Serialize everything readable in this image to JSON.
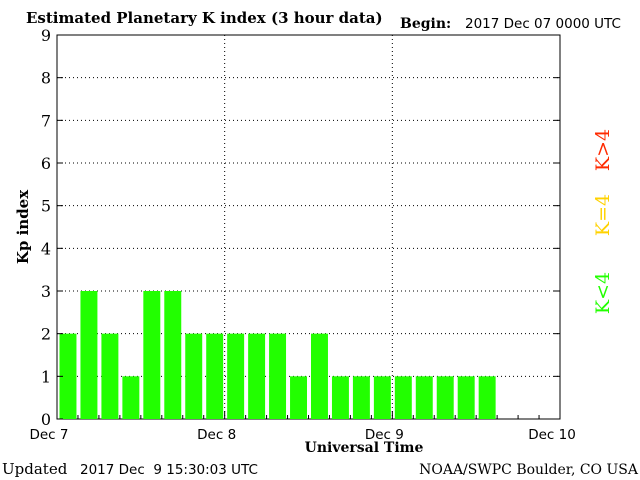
{
  "header": {
    "title": "Estimated Planetary K index (3 hour data)",
    "begin_label": "Begin:",
    "begin_value": "2017 Dec 07 0000 UTC"
  },
  "footer": {
    "updated_label": "Updated",
    "updated_value": "2017 Dec  9 15:30:03 UTC",
    "source": "NOAA/SWPC Boulder, CO USA"
  },
  "legend": {
    "high": {
      "label": "K>4",
      "color": "#ff2a00"
    },
    "mid": {
      "label": "K=4",
      "color": "#ffd200"
    },
    "low": {
      "label": "K<4",
      "color": "#22ff00"
    }
  },
  "colors": {
    "bar": "#22ff00"
  },
  "chart_data": {
    "type": "bar",
    "title": "Estimated Planetary K index (3 hour data)",
    "xlabel": "Universal Time",
    "ylabel": "Kp index",
    "ylim": [
      0,
      9
    ],
    "yticks": [
      "0",
      "1",
      "2",
      "3",
      "4",
      "5",
      "6",
      "7",
      "8",
      "9"
    ],
    "xlim_days": [
      0,
      3
    ],
    "xticks": [
      "Dec 7",
      "Dec 8",
      "Dec 9",
      "Dec 10"
    ],
    "interval_hours": 3,
    "grid": true,
    "values": [
      2,
      3,
      2,
      1,
      3,
      3,
      2,
      2,
      2,
      2,
      2,
      1,
      2,
      1,
      1,
      1,
      1,
      1,
      1,
      1,
      1
    ]
  }
}
